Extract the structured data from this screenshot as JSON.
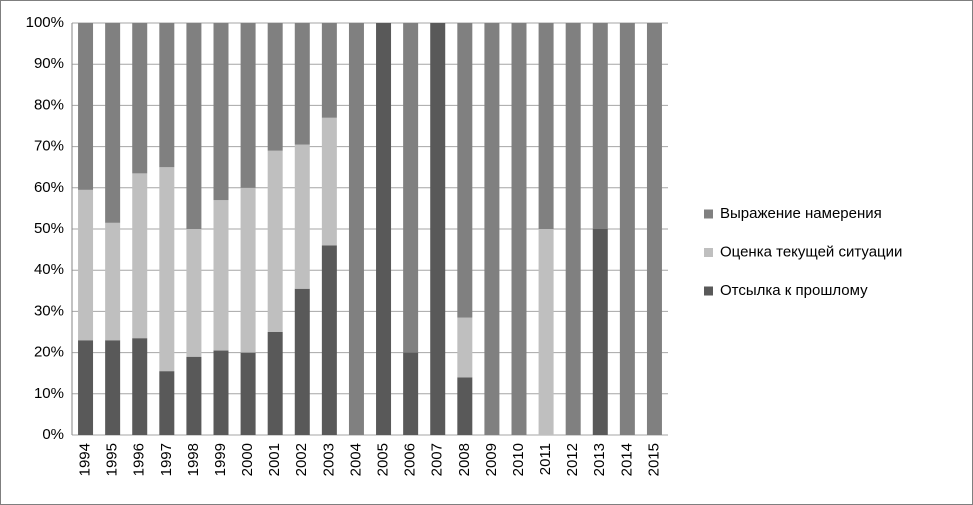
{
  "chart_data": {
    "type": "stacked_bar",
    "categories": [
      "1994",
      "1995",
      "1996",
      "1997",
      "1998",
      "1999",
      "2000",
      "2001",
      "2002",
      "2003",
      "2004",
      "2005",
      "2006",
      "2007",
      "2008",
      "2009",
      "2010",
      "2011",
      "2012",
      "2013",
      "2014",
      "2015"
    ],
    "series": [
      {
        "name": "Отсылка к прошлому",
        "color": "#595959",
        "values": [
          23,
          23,
          23.5,
          15.5,
          19,
          20.5,
          20,
          25,
          35.5,
          46,
          0,
          100,
          20,
          100,
          14,
          0,
          0,
          0,
          0,
          50,
          0,
          0
        ]
      },
      {
        "name": "Оценка текущей ситуации",
        "color": "#bfbfbf",
        "values": [
          36.5,
          28.5,
          40,
          49.5,
          31,
          36.5,
          40,
          44,
          35,
          31,
          0,
          0,
          0,
          0,
          14.5,
          0,
          0,
          50,
          0,
          0,
          0,
          0
        ]
      },
      {
        "name": "Выражение намерения",
        "color": "#808080",
        "values": [
          40.5,
          48.5,
          36.5,
          35,
          50,
          43,
          40,
          31,
          29.5,
          23,
          100,
          0,
          80,
          0,
          71.5,
          100,
          100,
          50,
          100,
          50,
          100,
          100
        ]
      }
    ],
    "ylim": [
      0,
      100
    ],
    "yticks": [
      {
        "value": 0,
        "label": "0%"
      },
      {
        "value": 10,
        "label": "10%"
      },
      {
        "value": 20,
        "label": "20%"
      },
      {
        "value": 30,
        "label": "30%"
      },
      {
        "value": 40,
        "label": "40%"
      },
      {
        "value": 50,
        "label": "50%"
      },
      {
        "value": 60,
        "label": "60%"
      },
      {
        "value": 70,
        "label": "70%"
      },
      {
        "value": 80,
        "label": "80%"
      },
      {
        "value": 90,
        "label": "90%"
      },
      {
        "value": 100,
        "label": "100%"
      }
    ],
    "grid": true
  }
}
